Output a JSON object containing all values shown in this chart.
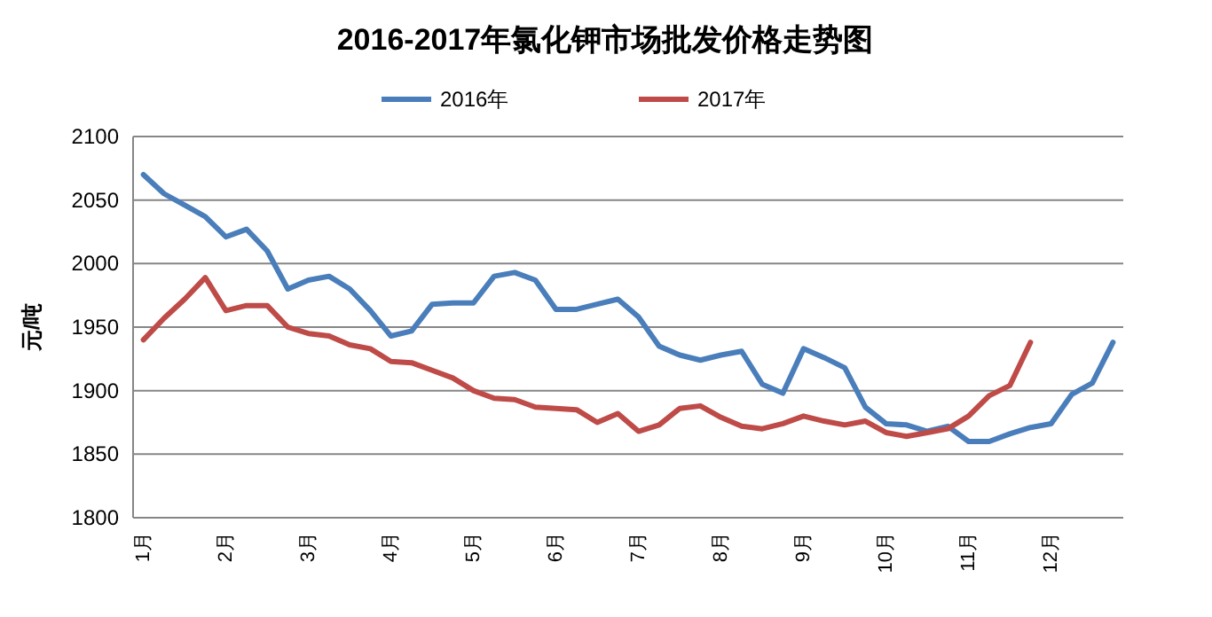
{
  "chart_data": {
    "type": "line",
    "title": "2016-2017年氯化钾市场批发价格走势图",
    "ylabel": "元/吨",
    "categories": [
      "1月",
      null,
      null,
      null,
      "2月",
      null,
      null,
      null,
      "3月",
      null,
      null,
      null,
      "4月",
      null,
      null,
      null,
      "5月",
      null,
      null,
      null,
      "6月",
      null,
      null,
      null,
      "7月",
      null,
      null,
      null,
      "8月",
      null,
      null,
      null,
      "9月",
      null,
      null,
      null,
      "10月",
      null,
      null,
      null,
      "11月",
      null,
      null,
      null,
      "12月",
      null,
      null,
      null
    ],
    "series": [
      {
        "name": "2016年",
        "color": "#4a7ebb",
        "values": [
          2070,
          2055,
          2046,
          2037,
          2021,
          2027,
          2010,
          1980,
          1987,
          1990,
          1980,
          1963,
          1943,
          1947,
          1968,
          1969,
          1969,
          1990,
          1993,
          1987,
          1964,
          1964,
          1968,
          1972,
          1958,
          1935,
          1928,
          1924,
          1928,
          1931,
          1905,
          1898,
          1933,
          1926,
          1918,
          1887,
          1874,
          1873,
          1868,
          1872,
          1860,
          1860,
          1866,
          1871,
          1874,
          1897,
          1906,
          1938
        ]
      },
      {
        "name": "2017年",
        "color": "#be4b48",
        "values": [
          1940,
          1957,
          1972,
          1989,
          1963,
          1967,
          1967,
          1950,
          1945,
          1943,
          1936,
          1933,
          1923,
          1922,
          1916,
          1910,
          1900,
          1894,
          1893,
          1887,
          1886,
          1885,
          1875,
          1882,
          1868,
          1873,
          1886,
          1888,
          1879,
          1872,
          1870,
          1874,
          1880,
          1876,
          1873,
          1876,
          1867,
          1864,
          1867,
          1870,
          1880,
          1896,
          1904,
          1938,
          null,
          null,
          null,
          null
        ]
      }
    ],
    "ylim": [
      1800,
      2100
    ],
    "yticks": [
      1800,
      1850,
      1900,
      1950,
      2000,
      2050,
      2100
    ],
    "grid": "y",
    "legend": "top"
  }
}
